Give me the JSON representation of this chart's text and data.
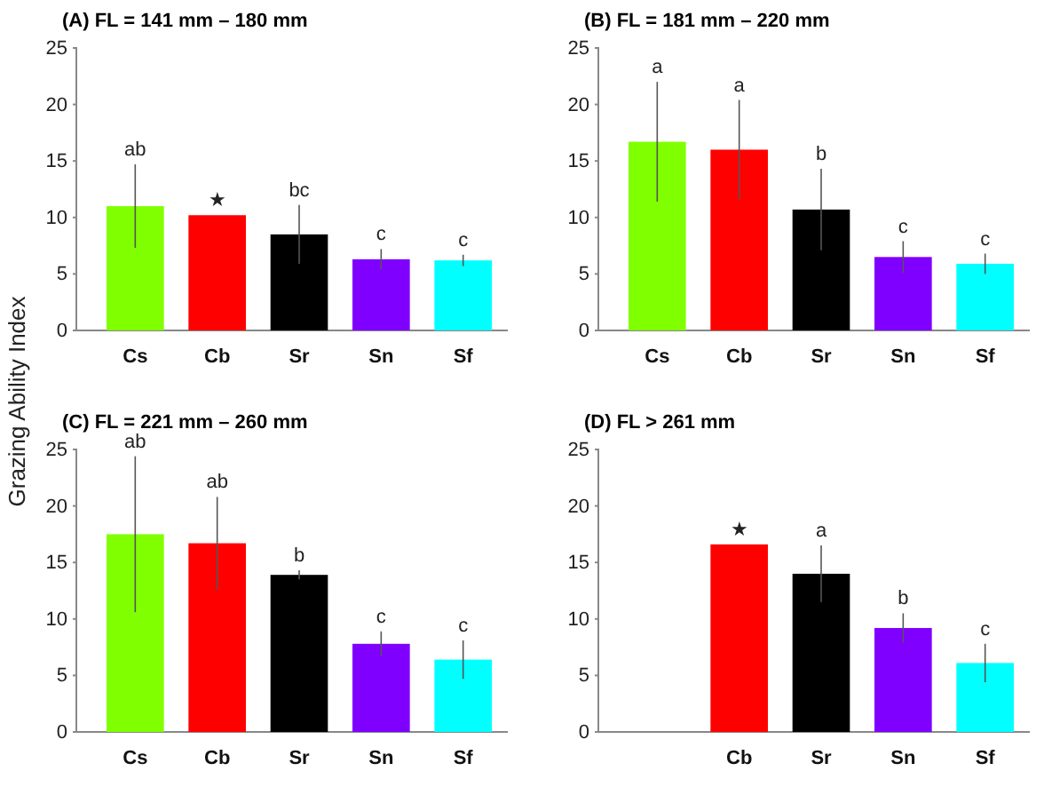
{
  "chart_data": [
    {
      "type": "bar",
      "title": "(A) FL = 141 mm – 180 mm",
      "ylabel": "Grazing Ability Index",
      "categories": [
        "Cs",
        "Cb",
        "Sr",
        "Sn",
        "Sf"
      ],
      "values": [
        11.0,
        10.2,
        8.5,
        6.3,
        6.2
      ],
      "errors": [
        3.7,
        null,
        2.6,
        0.9,
        0.5
      ],
      "colors": [
        "#80ff00",
        "#ff0000",
        "#000000",
        "#8000ff",
        "#00ffff"
      ],
      "ylim": [
        0,
        25
      ],
      "yticks": [
        0,
        5,
        10,
        15,
        20,
        25
      ],
      "grid": false,
      "annotations": [
        "ab",
        "★",
        "bc",
        "c",
        "c"
      ]
    },
    {
      "type": "bar",
      "title": "(B) FL = 181 mm – 220 mm",
      "categories": [
        "Cs",
        "Cb",
        "Sr",
        "Sn",
        "Sf"
      ],
      "values": [
        16.7,
        16.0,
        10.7,
        6.5,
        5.9
      ],
      "errors": [
        5.3,
        4.4,
        3.6,
        1.4,
        0.9
      ],
      "colors": [
        "#80ff00",
        "#ff0000",
        "#000000",
        "#8000ff",
        "#00ffff"
      ],
      "ylim": [
        0,
        25
      ],
      "yticks": [
        0,
        5,
        10,
        15,
        20,
        25
      ],
      "grid": false,
      "annotations": [
        "a",
        "a",
        "b",
        "c",
        "c"
      ]
    },
    {
      "type": "bar",
      "title": "(C) FL =  221 mm – 260 mm",
      "categories": [
        "Cs",
        "Cb",
        "Sr",
        "Sn",
        "Sf"
      ],
      "values": [
        17.5,
        16.7,
        13.9,
        7.8,
        6.4
      ],
      "errors": [
        6.9,
        4.1,
        0.4,
        1.1,
        1.7
      ],
      "colors": [
        "#80ff00",
        "#ff0000",
        "#000000",
        "#8000ff",
        "#00ffff"
      ],
      "ylim": [
        0,
        25
      ],
      "yticks": [
        0,
        5,
        10,
        15,
        20,
        25
      ],
      "grid": false,
      "annotations": [
        "ab",
        "ab",
        "b",
        "c",
        "c"
      ]
    },
    {
      "type": "bar",
      "title": "(D) FL > 261 mm",
      "categories": [
        null,
        "Cb",
        "Sr",
        "Sn",
        "Sf"
      ],
      "values": [
        null,
        16.6,
        14.0,
        9.2,
        6.1
      ],
      "errors": [
        null,
        null,
        2.5,
        1.3,
        1.7
      ],
      "colors": [
        null,
        "#ff0000",
        "#000000",
        "#8000ff",
        "#00ffff"
      ],
      "ylim": [
        0,
        25
      ],
      "yticks": [
        0,
        5,
        10,
        15,
        20,
        25
      ],
      "grid": false,
      "annotations": [
        "★",
        "a",
        "b",
        "c"
      ]
    }
  ]
}
